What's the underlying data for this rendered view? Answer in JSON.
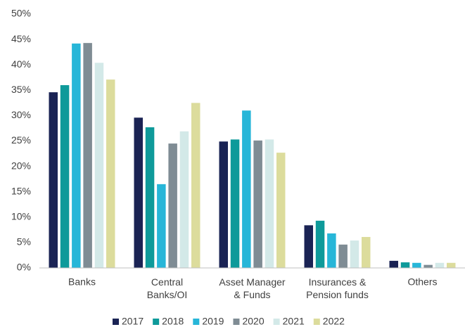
{
  "chart_data": {
    "type": "bar",
    "categories": [
      "Banks",
      "Central\nBanks/OI",
      "Asset Manager\n& Funds",
      "Insurances &\nPension funds",
      "Others"
    ],
    "series": [
      {
        "name": "2017",
        "color": "#1a2354",
        "values": [
          34.6,
          29.6,
          24.9,
          8.4,
          1.4
        ]
      },
      {
        "name": "2018",
        "color": "#0e9a9a",
        "values": [
          36.0,
          27.7,
          25.3,
          9.3,
          1.1
        ]
      },
      {
        "name": "2019",
        "color": "#27b6d8",
        "values": [
          44.2,
          16.5,
          31.0,
          6.8,
          1.0
        ]
      },
      {
        "name": "2020",
        "color": "#7f8c94",
        "values": [
          44.3,
          24.5,
          25.1,
          4.6,
          0.6
        ]
      },
      {
        "name": "2021",
        "color": "#d3e9e8",
        "values": [
          40.4,
          26.9,
          25.3,
          5.4,
          1.0
        ]
      },
      {
        "name": "2022",
        "color": "#dcdc9c",
        "values": [
          37.1,
          32.5,
          22.7,
          6.1,
          1.0
        ]
      }
    ],
    "ylim": [
      0,
      50
    ],
    "yticks": [
      {
        "value": 0,
        "label": "0%"
      },
      {
        "value": 5,
        "label": "5%"
      },
      {
        "value": 10,
        "label": "10%"
      },
      {
        "value": 15,
        "label": "15%"
      },
      {
        "value": 20,
        "label": "20%"
      },
      {
        "value": 25,
        "label": "25%"
      },
      {
        "value": 30,
        "label": "30%"
      },
      {
        "value": 35,
        "label": "35%"
      },
      {
        "value": 40,
        "label": "40%"
      },
      {
        "value": 45,
        "label": "45%"
      },
      {
        "value": 50,
        "label": "50%"
      }
    ],
    "legend": "bottom",
    "grid": false
  }
}
